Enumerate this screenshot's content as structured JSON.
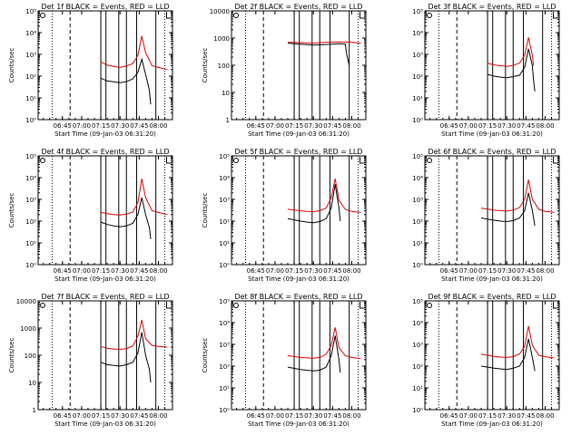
{
  "colors": {
    "events": "#000000",
    "lld": "#dd0000",
    "axis": "#000000",
    "background": "#ffffff"
  },
  "chart_data": [
    {
      "type": "line",
      "title": "Det 1f BLACK = Events, RED = LLD",
      "xlabel": "Start Time (09-Jan-03 06:31:20)",
      "ylabel": "Counts/sec",
      "x_ticks": [
        "06:45",
        "07:00",
        "07:15",
        "07:30",
        "07:45",
        "08:00"
      ],
      "y_ticks": [
        "10⁰",
        "10¹",
        "10²",
        "10³",
        "10⁴",
        "10⁵"
      ],
      "ylim": [
        1,
        100000
      ],
      "scale": "log",
      "series": [
        {
          "name": "Events",
          "x": [
            "07:15",
            "07:20",
            "07:25",
            "07:30",
            "07:35",
            "07:40",
            "07:44",
            "07:47",
            "07:50",
            "07:52",
            "07:53",
            "07:54"
          ],
          "values": [
            80,
            60,
            55,
            50,
            55,
            75,
            150,
            600,
            120,
            40,
            20,
            5
          ]
        },
        {
          "name": "LLD",
          "x": [
            "07:15",
            "07:20",
            "07:25",
            "07:30",
            "07:35",
            "07:40",
            "07:44",
            "07:47",
            "07:50",
            "07:55",
            "08:00",
            "08:07"
          ],
          "values": [
            450,
            320,
            280,
            250,
            290,
            380,
            900,
            7000,
            1200,
            300,
            250,
            200
          ]
        }
      ]
    },
    {
      "type": "line",
      "title": "Det 2f BLACK = Events, RED = LLD",
      "xlabel": "Start Time (09-Jan-03 06:31:20)",
      "ylabel": "Counts/sec",
      "x_ticks": [
        "06:45",
        "07:00",
        "07:15",
        "07:30",
        "07:45",
        "08:00"
      ],
      "y_ticks": [
        "1",
        "10",
        "100",
        "1000",
        "10000"
      ],
      "ylim": [
        1,
        10000
      ],
      "scale": "log",
      "series": [
        {
          "name": "Events",
          "x": [
            "07:10",
            "07:20",
            "07:30",
            "07:40",
            "07:50",
            "07:55",
            "07:56",
            "07:58"
          ],
          "values": [
            650,
            600,
            550,
            580,
            620,
            600,
            250,
            100
          ]
        },
        {
          "name": "LLD",
          "x": [
            "07:10",
            "07:20",
            "07:30",
            "07:40",
            "07:50",
            "08:00",
            "08:07"
          ],
          "values": [
            700,
            680,
            650,
            700,
            720,
            700,
            650
          ]
        }
      ]
    },
    {
      "type": "line",
      "title": "Det 3f BLACK = Events, RED = LLD",
      "xlabel": "Start Time (09-Jan-03 06:31:20)",
      "ylabel": "",
      "x_ticks": [
        "06:45",
        "07:00",
        "07:15",
        "07:30",
        "07:45",
        "08:00"
      ],
      "y_ticks": [
        "10⁰",
        "10¹",
        "10²",
        "10³",
        "10⁴",
        "10⁵"
      ],
      "ylim": [
        1,
        100000
      ],
      "scale": "log",
      "series": [
        {
          "name": "Events",
          "x": [
            "07:15",
            "07:20",
            "07:25",
            "07:30",
            "07:35",
            "07:40",
            "07:44",
            "07:47",
            "07:50",
            "07:51",
            "07:52"
          ],
          "values": [
            120,
            100,
            90,
            85,
            95,
            110,
            250,
            1800,
            300,
            60,
            20
          ]
        },
        {
          "name": "LLD",
          "x": [
            "07:15",
            "07:20",
            "07:25",
            "07:30",
            "07:35",
            "07:40",
            "07:44",
            "07:47",
            "07:50",
            "07:51"
          ],
          "values": [
            400,
            330,
            300,
            280,
            310,
            400,
            900,
            6000,
            900,
            300
          ]
        }
      ]
    },
    {
      "type": "line",
      "title": "Det 4f BLACK = Events, RED = LLD",
      "xlabel": "Start Time (09-Jan-03 06:31:20)",
      "ylabel": "Counts/sec",
      "x_ticks": [
        "06:45",
        "07:00",
        "07:15",
        "07:30",
        "07:45",
        "08:00"
      ],
      "y_ticks": [
        "10⁰",
        "10¹",
        "10²",
        "10³",
        "10⁴",
        "10⁵"
      ],
      "ylim": [
        1,
        100000
      ],
      "scale": "log",
      "series": [
        {
          "name": "Events",
          "x": [
            "07:15",
            "07:20",
            "07:25",
            "07:30",
            "07:35",
            "07:40",
            "07:44",
            "07:47",
            "07:50",
            "07:53",
            "07:54"
          ],
          "values": [
            90,
            70,
            60,
            55,
            60,
            80,
            200,
            1200,
            200,
            50,
            15
          ]
        },
        {
          "name": "LLD",
          "x": [
            "07:15",
            "07:20",
            "07:25",
            "07:30",
            "07:35",
            "07:40",
            "07:44",
            "07:47",
            "07:50",
            "07:55",
            "08:00",
            "08:07"
          ],
          "values": [
            250,
            220,
            200,
            190,
            210,
            260,
            700,
            9000,
            1200,
            300,
            250,
            200
          ]
        }
      ]
    },
    {
      "type": "line",
      "title": "Det 5f BLACK = Events, RED = LLD",
      "xlabel": "Start Time (09-Jan-03 06:31:20)",
      "ylabel": "Counts/sec",
      "x_ticks": [
        "06:45",
        "07:00",
        "07:15",
        "07:30",
        "07:45",
        "08:00"
      ],
      "y_ticks": [
        "10⁰",
        "10¹",
        "10²",
        "10³",
        "10⁴",
        "10⁵"
      ],
      "ylim": [
        1,
        100000
      ],
      "scale": "log",
      "series": [
        {
          "name": "Events",
          "x": [
            "07:10",
            "07:20",
            "07:25",
            "07:30",
            "07:35",
            "07:40",
            "07:44",
            "07:47",
            "07:50",
            "07:51"
          ],
          "values": [
            130,
            100,
            90,
            85,
            95,
            130,
            400,
            5000,
            400,
            100
          ]
        },
        {
          "name": "LLD",
          "x": [
            "07:10",
            "07:20",
            "07:25",
            "07:30",
            "07:35",
            "07:40",
            "07:44",
            "07:47",
            "07:50",
            "07:55",
            "08:00",
            "08:07"
          ],
          "values": [
            350,
            300,
            280,
            270,
            300,
            400,
            1200,
            9000,
            900,
            350,
            280,
            250
          ]
        }
      ]
    },
    {
      "type": "line",
      "title": "Det 6f BLACK = Events, RED = LLD",
      "xlabel": "Start Time (09-Jan-03 06:31:20)",
      "ylabel": "",
      "x_ticks": [
        "06:45",
        "07:00",
        "07:15",
        "07:30",
        "07:45",
        "08:00"
      ],
      "y_ticks": [
        "10⁰",
        "10¹",
        "10²",
        "10³",
        "10⁴",
        "10⁵"
      ],
      "ylim": [
        1,
        100000
      ],
      "scale": "log",
      "series": [
        {
          "name": "Events",
          "x": [
            "07:10",
            "07:20",
            "07:25",
            "07:30",
            "07:35",
            "07:40",
            "07:44",
            "07:47",
            "07:50",
            "07:52"
          ],
          "values": [
            140,
            110,
            100,
            95,
            105,
            140,
            300,
            2000,
            300,
            60
          ]
        },
        {
          "name": "LLD",
          "x": [
            "07:10",
            "07:20",
            "07:25",
            "07:30",
            "07:35",
            "07:40",
            "07:44",
            "07:47",
            "07:50",
            "07:55",
            "08:00",
            "08:07"
          ],
          "values": [
            400,
            320,
            300,
            290,
            320,
            420,
            1000,
            8000,
            1000,
            350,
            280,
            250
          ]
        }
      ]
    },
    {
      "type": "line",
      "title": "Det 7f BLACK = Events, RED = LLD",
      "xlabel": "Start Time (09-Jan-03 06:31:20)",
      "ylabel": "Counts/sec",
      "x_ticks": [
        "06:45",
        "07:00",
        "07:15",
        "07:30",
        "07:45",
        "08:00"
      ],
      "y_ticks": [
        "1",
        "10",
        "100",
        "1000",
        "10000"
      ],
      "ylim": [
        1,
        10000
      ],
      "scale": "log",
      "series": [
        {
          "name": "Events",
          "x": [
            "07:15",
            "07:20",
            "07:25",
            "07:30",
            "07:35",
            "07:40",
            "07:44",
            "07:47",
            "07:50",
            "07:53",
            "07:54"
          ],
          "values": [
            55,
            45,
            42,
            40,
            45,
            55,
            120,
            700,
            100,
            30,
            10
          ]
        },
        {
          "name": "LLD",
          "x": [
            "07:15",
            "07:20",
            "07:25",
            "07:30",
            "07:35",
            "07:40",
            "07:44",
            "07:47",
            "07:50",
            "07:55",
            "08:00",
            "08:07"
          ],
          "values": [
            210,
            180,
            170,
            165,
            175,
            220,
            500,
            2000,
            400,
            230,
            210,
            200
          ]
        }
      ]
    },
    {
      "type": "line",
      "title": "Det 8f BLACK = Events, RED = LLD",
      "xlabel": "Start Time (09-Jan-03 06:31:20)",
      "ylabel": "Counts/sec",
      "x_ticks": [
        "06:45",
        "07:00",
        "07:15",
        "07:30",
        "07:45",
        "08:00"
      ],
      "y_ticks": [
        "10⁰",
        "10¹",
        "10²",
        "10³",
        "10⁴",
        "10⁵"
      ],
      "ylim": [
        1,
        100000
      ],
      "scale": "log",
      "series": [
        {
          "name": "Events",
          "x": [
            "07:10",
            "07:20",
            "07:25",
            "07:30",
            "07:35",
            "07:40",
            "07:44",
            "07:47",
            "07:50",
            "07:51"
          ],
          "values": [
            90,
            70,
            65,
            60,
            65,
            90,
            300,
            2500,
            200,
            50
          ]
        },
        {
          "name": "LLD",
          "x": [
            "07:10",
            "07:20",
            "07:25",
            "07:30",
            "07:35",
            "07:40",
            "07:44",
            "07:47",
            "07:50",
            "07:55",
            "08:00",
            "08:07"
          ],
          "values": [
            300,
            250,
            240,
            230,
            250,
            350,
            900,
            6000,
            700,
            300,
            250,
            220
          ]
        }
      ]
    },
    {
      "type": "line",
      "title": "Det 9f BLACK = Events, RED = LLD",
      "xlabel": "Start Time (09-Jan-03 06:31:20)",
      "ylabel": "",
      "x_ticks": [
        "06:45",
        "07:00",
        "07:15",
        "07:30",
        "07:45",
        "08:00"
      ],
      "y_ticks": [
        "10⁰",
        "10¹",
        "10²",
        "10³",
        "10⁴",
        "10⁵"
      ],
      "ylim": [
        1,
        100000
      ],
      "scale": "log",
      "series": [
        {
          "name": "Events",
          "x": [
            "07:10",
            "07:20",
            "07:25",
            "07:30",
            "07:35",
            "07:40",
            "07:44",
            "07:47",
            "07:50",
            "07:52"
          ],
          "values": [
            100,
            80,
            75,
            70,
            80,
            100,
            250,
            1800,
            250,
            60
          ]
        },
        {
          "name": "LLD",
          "x": [
            "07:10",
            "07:20",
            "07:25",
            "07:30",
            "07:35",
            "07:40",
            "07:44",
            "07:47",
            "07:50",
            "07:55",
            "08:00",
            "08:07"
          ],
          "values": [
            350,
            280,
            260,
            250,
            270,
            360,
            800,
            7000,
            900,
            320,
            270,
            240
          ]
        }
      ]
    }
  ]
}
